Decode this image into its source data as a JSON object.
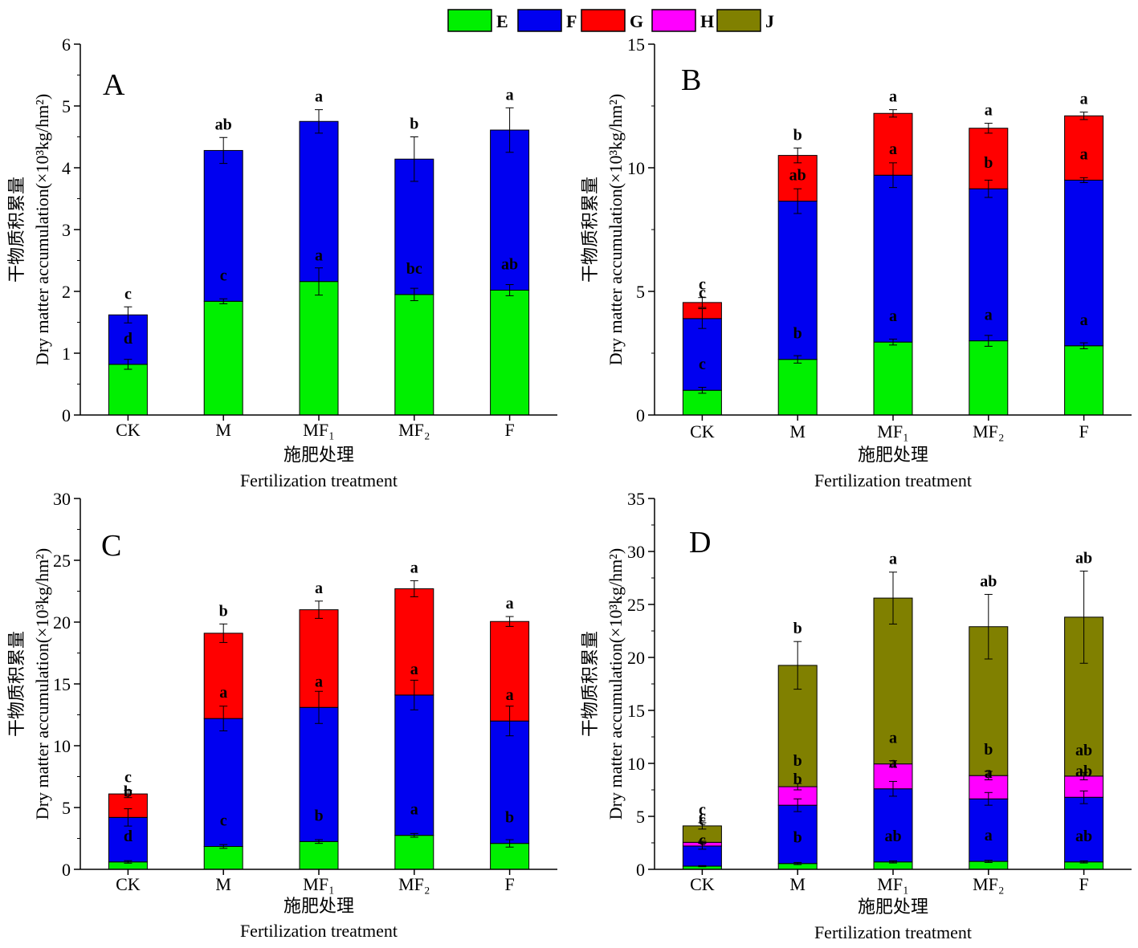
{
  "legend": [
    {
      "key": "E",
      "color": "#00f000"
    },
    {
      "key": "F",
      "color": "#0000f0"
    },
    {
      "key": "G",
      "color": "#ff0000"
    },
    {
      "key": "H",
      "color": "#ff00ff"
    },
    {
      "key": "J",
      "color": "#808000"
    }
  ],
  "chart_data": [
    {
      "type": "bar",
      "stacked": true,
      "panel": "A",
      "categories": [
        "CK",
        "M",
        "MF₁",
        "MF₂",
        "F"
      ],
      "ylim": [
        0,
        6
      ],
      "yticks": [
        0,
        1,
        2,
        3,
        4,
        5,
        6
      ],
      "ylabel_cn": "干物质积累量",
      "ylabel_en": "Dry matter accumulation(×10³kg/hm²)",
      "xlabel_cn": "施肥处理",
      "xlabel_en": "Fertilization treatment",
      "series": [
        {
          "name": "E",
          "values": [
            0.82,
            1.84,
            2.16,
            1.95,
            2.02
          ],
          "errors": [
            0.08,
            0.04,
            0.22,
            0.1,
            0.09
          ],
          "letters": [
            "d",
            "c",
            "a",
            "bc",
            "ab"
          ]
        },
        {
          "name": "F",
          "values": [
            0.8,
            2.44,
            2.59,
            2.19,
            2.59
          ],
          "errors": [
            0.13,
            0.21,
            0.19,
            0.36,
            0.36
          ],
          "letters": [
            "c",
            "ab",
            "a",
            "b",
            "a"
          ]
        }
      ]
    },
    {
      "type": "bar",
      "stacked": true,
      "panel": "B",
      "categories": [
        "CK",
        "M",
        "MF₁",
        "MF₂",
        "F"
      ],
      "ylim": [
        0,
        15
      ],
      "yticks": [
        0,
        5,
        10,
        15
      ],
      "ylabel_cn": "干物质积累量",
      "ylabel_en": "Dry matter accumulation(×10³kg/hm²)",
      "xlabel_cn": "施肥处理",
      "xlabel_en": "Fertilization treatment",
      "series": [
        {
          "name": "E",
          "values": [
            1.0,
            2.25,
            2.95,
            3.0,
            2.8
          ],
          "errors": [
            0.12,
            0.15,
            0.12,
            0.22,
            0.12
          ],
          "letters": [
            "c",
            "b",
            "a",
            "a",
            "a"
          ]
        },
        {
          "name": "F",
          "values": [
            2.9,
            6.4,
            6.75,
            6.15,
            6.7
          ],
          "errors": [
            0.4,
            0.5,
            0.5,
            0.35,
            0.1
          ],
          "letters": [
            "c",
            "ab",
            "a",
            "b",
            "a"
          ]
        },
        {
          "name": "G",
          "values": [
            0.65,
            1.85,
            2.5,
            2.45,
            2.6
          ],
          "errors": [
            0.2,
            0.3,
            0.15,
            0.2,
            0.15
          ],
          "letters": [
            "c",
            "b",
            "a",
            "a",
            "a"
          ]
        }
      ]
    },
    {
      "type": "bar",
      "stacked": true,
      "panel": "C",
      "categories": [
        "CK",
        "M",
        "MF₁",
        "MF₂",
        "F"
      ],
      "ylim": [
        0,
        30
      ],
      "yticks": [
        0,
        5,
        10,
        15,
        20,
        25,
        30
      ],
      "ylabel_cn": "干物质积累量",
      "ylabel_en": "Dry matter accumulation(×10³kg/hm²)",
      "xlabel_cn": "施肥处理",
      "xlabel_en": "Fertilization treatment",
      "series": [
        {
          "name": "E",
          "values": [
            0.6,
            1.85,
            2.25,
            2.75,
            2.1
          ],
          "errors": [
            0.1,
            0.15,
            0.15,
            0.15,
            0.3
          ],
          "letters": [
            "d",
            "c",
            "b",
            "a",
            "b"
          ]
        },
        {
          "name": "F",
          "values": [
            3.6,
            10.35,
            10.85,
            11.35,
            9.9
          ],
          "errors": [
            0.7,
            1.0,
            1.3,
            1.2,
            1.2
          ],
          "letters": [
            "b",
            "a",
            "a",
            "a",
            "a"
          ]
        },
        {
          "name": "G",
          "values": [
            1.9,
            6.9,
            7.9,
            8.6,
            8.05
          ],
          "errors": [
            0.3,
            0.75,
            0.7,
            0.65,
            0.4
          ],
          "letters": [
            "c",
            "b",
            "a",
            "a",
            "a"
          ]
        }
      ]
    },
    {
      "type": "bar",
      "stacked": true,
      "panel": "D",
      "categories": [
        "CK",
        "M",
        "MF₁",
        "MF₂",
        "F"
      ],
      "ylim": [
        0,
        35
      ],
      "yticks": [
        0,
        5,
        10,
        15,
        20,
        25,
        30,
        35
      ],
      "ylabel_cn": "干物质积累量",
      "ylabel_en": "Dry matter accumulation(×10³kg/hm²)",
      "xlabel_cn": "施肥处理",
      "xlabel_en": "Fertilization treatment",
      "series": [
        {
          "name": "E",
          "values": [
            0.3,
            0.55,
            0.7,
            0.75,
            0.7
          ],
          "errors": [
            0.05,
            0.1,
            0.1,
            0.1,
            0.1
          ],
          "letters": [
            "c",
            "b",
            "ab",
            "a",
            "ab"
          ]
        },
        {
          "name": "F",
          "values": [
            1.9,
            5.5,
            6.9,
            5.9,
            6.1
          ],
          "errors": [
            0.3,
            0.6,
            0.7,
            0.6,
            0.6
          ],
          "letters": [
            "c",
            "b",
            "a",
            "a",
            "ab"
          ]
        },
        {
          "name": "H",
          "values": [
            0.35,
            1.75,
            2.35,
            2.2,
            2.0
          ],
          "errors": [
            0.1,
            0.3,
            0.3,
            0.4,
            0.35
          ],
          "letters": [
            "c",
            "b",
            "a",
            "b",
            "ab"
          ]
        },
        {
          "name": "J",
          "values": [
            1.55,
            11.45,
            15.65,
            14.05,
            15.0
          ],
          "errors": [
            0.3,
            2.25,
            2.45,
            3.05,
            4.35
          ],
          "letters": [
            "c",
            "b",
            "a",
            "ab",
            "ab"
          ]
        }
      ]
    }
  ]
}
